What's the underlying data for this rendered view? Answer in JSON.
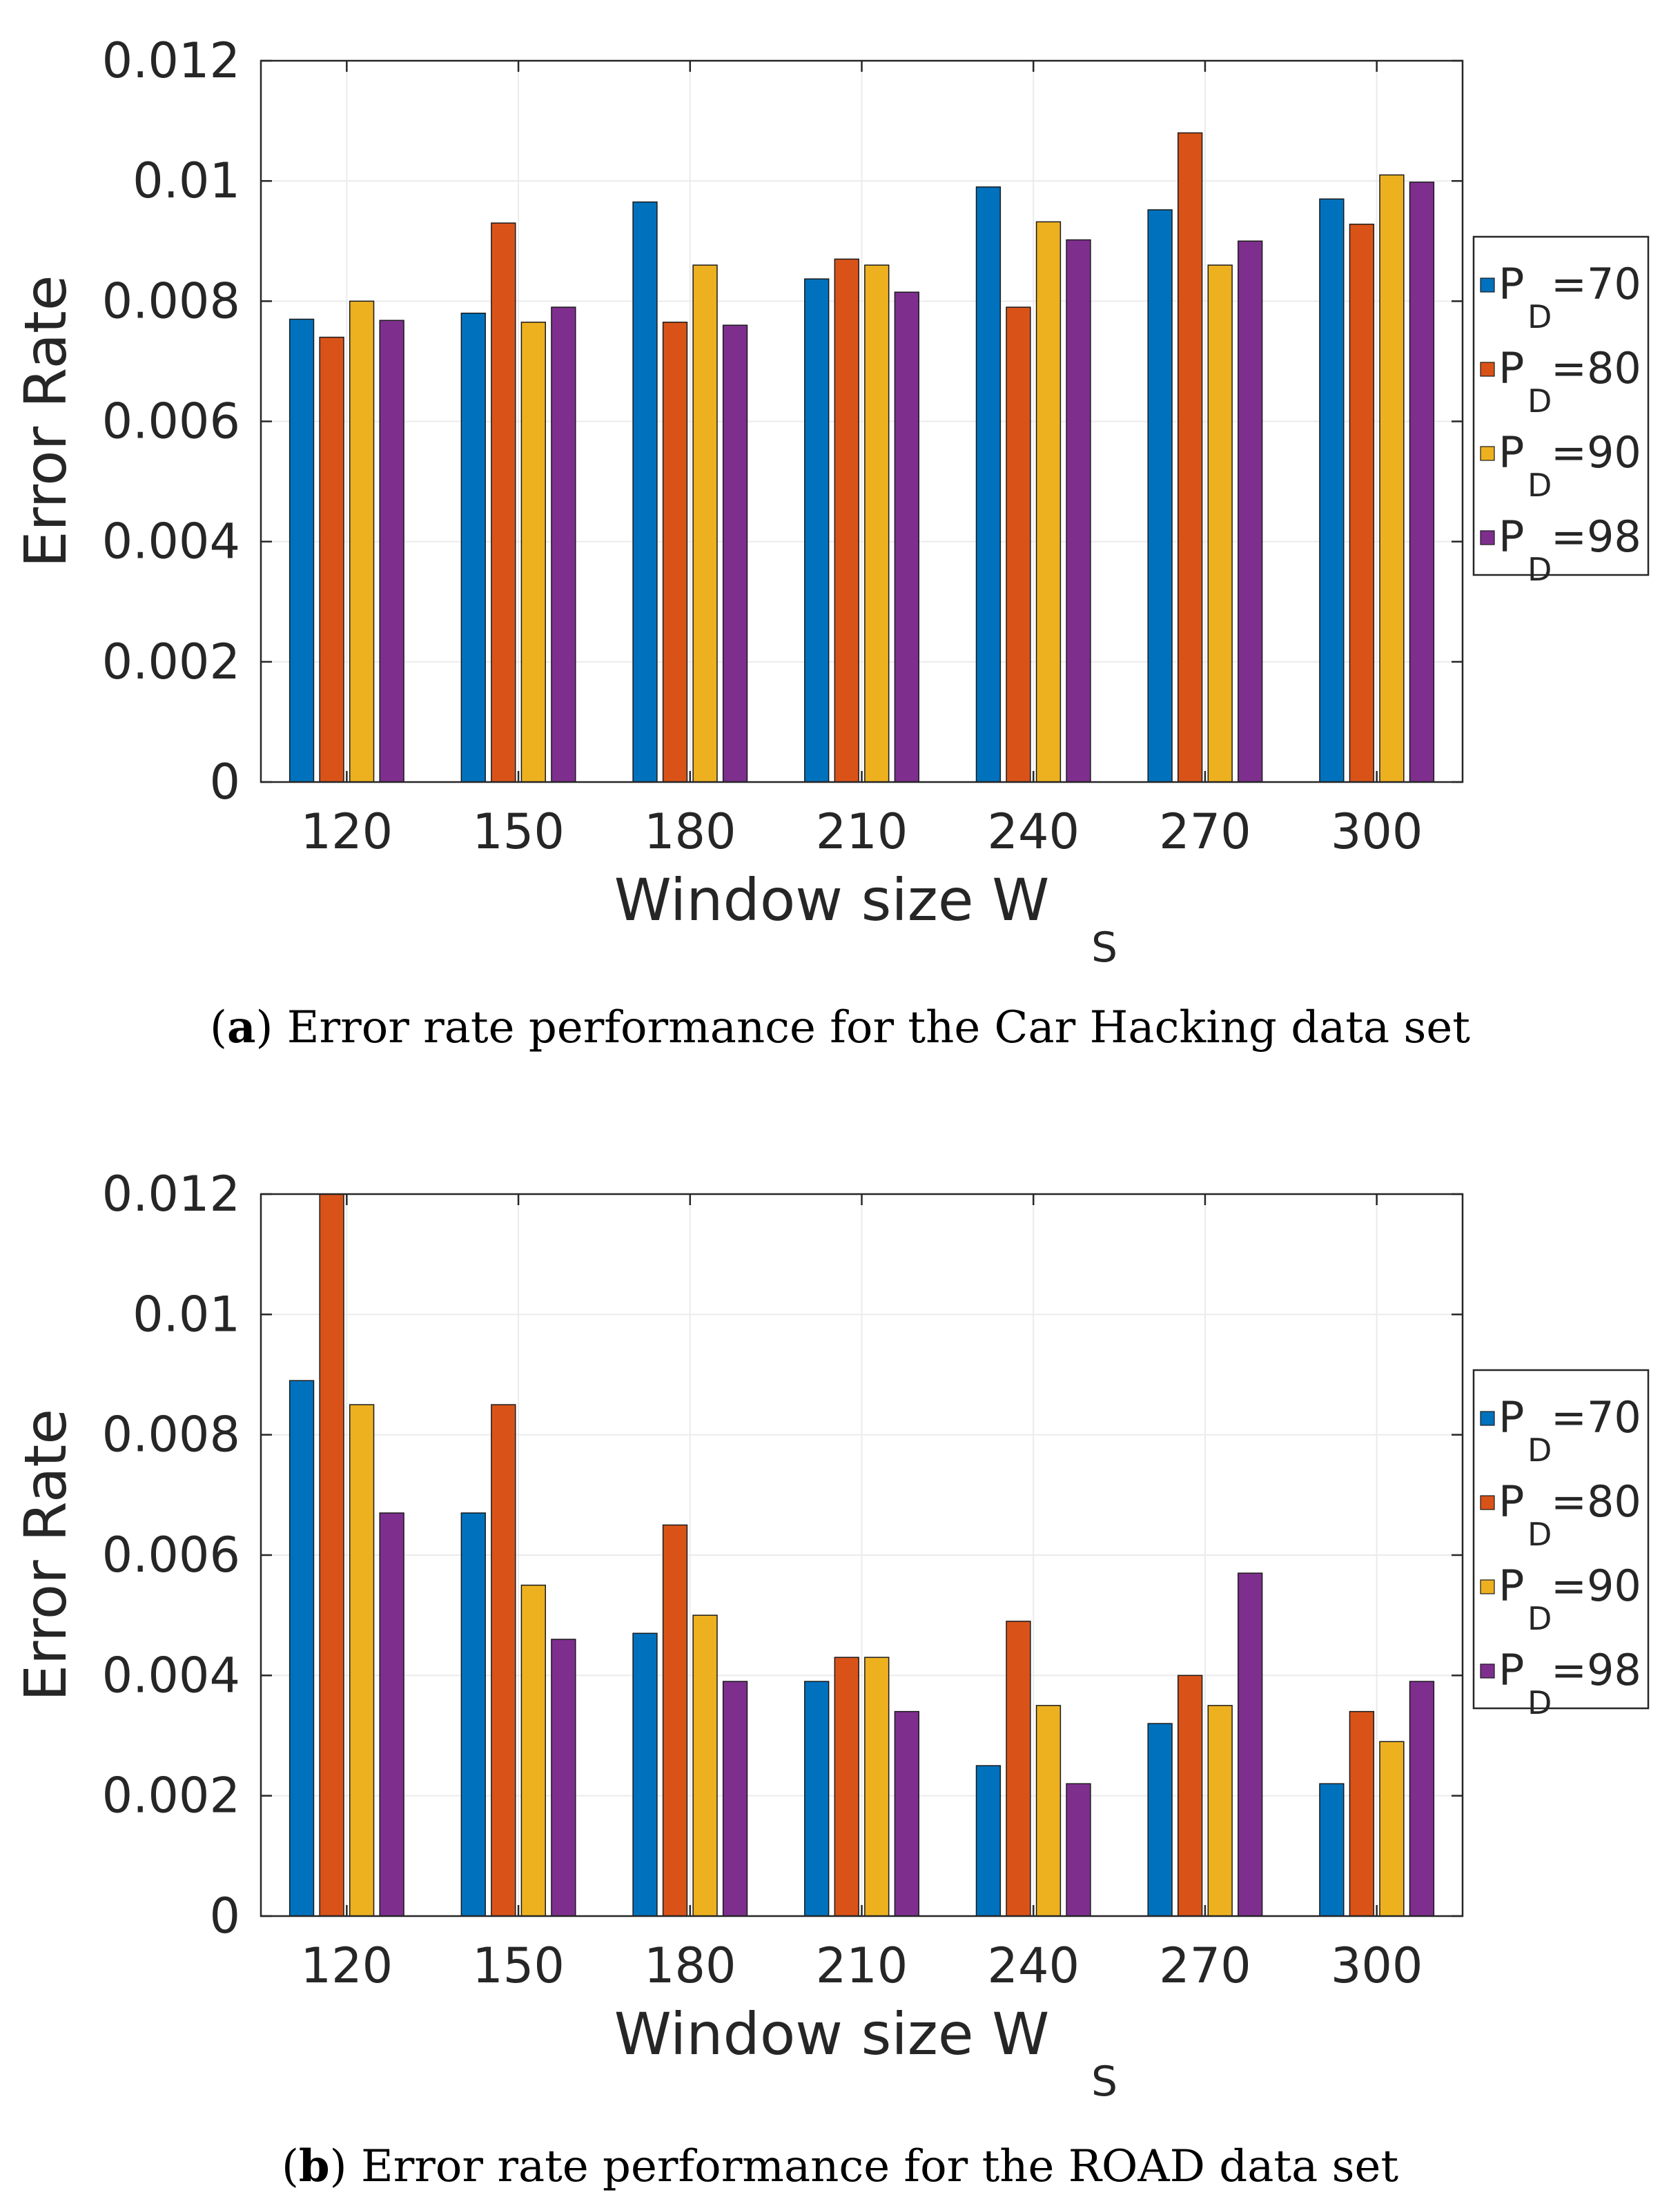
{
  "colors": {
    "series": [
      "#0072BD",
      "#D95319",
      "#EDB120",
      "#7E2F8E"
    ],
    "grid": "#ebebeb",
    "axis": "#262626"
  },
  "chart_data": [
    {
      "type": "bar",
      "categories": [
        "120",
        "150",
        "180",
        "210",
        "240",
        "270",
        "300"
      ],
      "series": [
        {
          "name": "P_D=70",
          "label_main": "P",
          "label_sub": "D",
          "label_rest": "=70",
          "values": [
            0.0077,
            0.0078,
            0.00965,
            0.00837,
            0.0099,
            0.00952,
            0.0097
          ]
        },
        {
          "name": "P_D=80",
          "label_main": "P",
          "label_sub": "D",
          "label_rest": "=80",
          "values": [
            0.0074,
            0.0093,
            0.00765,
            0.0087,
            0.0079,
            0.0108,
            0.00928
          ]
        },
        {
          "name": "P_D=90",
          "label_main": "P",
          "label_sub": "D",
          "label_rest": "=90",
          "values": [
            0.008,
            0.00765,
            0.0086,
            0.0086,
            0.00932,
            0.0086,
            0.0101
          ]
        },
        {
          "name": "P_D=98",
          "label_main": "P",
          "label_sub": "D",
          "label_rest": "=98",
          "values": [
            0.00768,
            0.0079,
            0.0076,
            0.00815,
            0.00902,
            0.009,
            0.00998
          ]
        }
      ],
      "yticks": [
        "0",
        "0.002",
        "0.004",
        "0.006",
        "0.008",
        "0.01",
        "0.012"
      ],
      "ylim": [
        0,
        0.012
      ],
      "xlabel": "Window size W",
      "xlabel_sub": "S",
      "ylabel": "Error Rate",
      "legend_position": "right",
      "grid": true,
      "caption_letter": "a",
      "caption_open": "(",
      "caption_close": ")",
      "caption_text": " Error rate performance for the Car Hacking data set"
    },
    {
      "type": "bar",
      "categories": [
        "120",
        "150",
        "180",
        "210",
        "240",
        "270",
        "300"
      ],
      "series": [
        {
          "name": "P_D=70",
          "label_main": "P",
          "label_sub": "D",
          "label_rest": "=70",
          "values": [
            0.0089,
            0.0067,
            0.0047,
            0.0039,
            0.0025,
            0.0032,
            0.0022
          ]
        },
        {
          "name": "P_D=80",
          "label_main": "P",
          "label_sub": "D",
          "label_rest": "=80",
          "values": [
            0.012,
            0.0085,
            0.0065,
            0.0043,
            0.0049,
            0.004,
            0.0034
          ]
        },
        {
          "name": "P_D=90",
          "label_main": "P",
          "label_sub": "D",
          "label_rest": "=90",
          "values": [
            0.0085,
            0.0055,
            0.005,
            0.0043,
            0.0035,
            0.0035,
            0.0029
          ]
        },
        {
          "name": "P_D=98",
          "label_main": "P",
          "label_sub": "D",
          "label_rest": "=98",
          "values": [
            0.0067,
            0.0046,
            0.0039,
            0.0034,
            0.0022,
            0.0057,
            0.0039
          ]
        }
      ],
      "yticks": [
        "0",
        "0.002",
        "0.004",
        "0.006",
        "0.008",
        "0.01",
        "0.012"
      ],
      "ylim": [
        0,
        0.012
      ],
      "xlabel": "Window size W",
      "xlabel_sub": "S",
      "ylabel": "Error Rate",
      "legend_position": "right",
      "grid": true,
      "caption_letter": "b",
      "caption_open": "(",
      "caption_close": ")",
      "caption_text": " Error rate performance for the ROAD data set"
    }
  ]
}
